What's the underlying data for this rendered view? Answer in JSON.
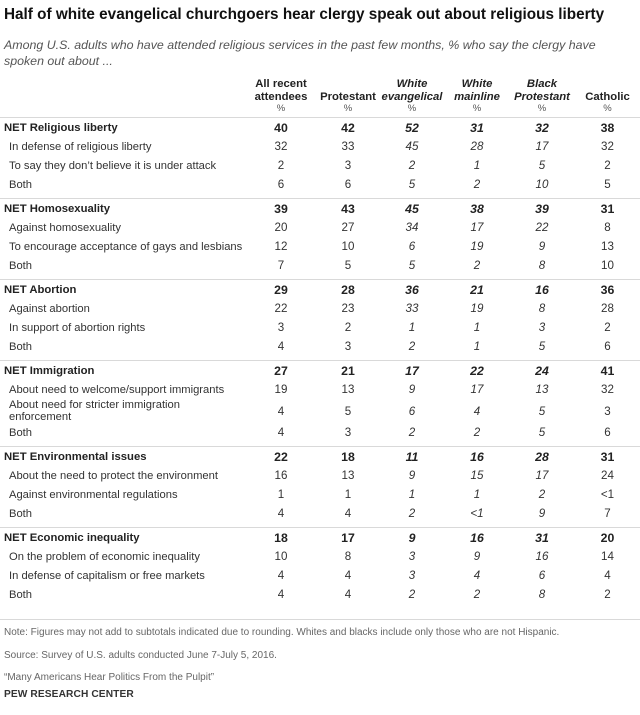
{
  "title": "Half of white evangelical churchgoers hear clergy speak out about religious liberty",
  "subtitle": "Among U.S. adults who have attended religious services in the past few months, % who say the clergy have spoken out about ...",
  "columns": [
    {
      "line1": "All recent",
      "line2": "attendees",
      "italic": false
    },
    {
      "line1": "",
      "line2": "Protestant",
      "italic": false
    },
    {
      "line1": "White",
      "line2": "evangelical",
      "italic": true
    },
    {
      "line1": "White",
      "line2": "mainline",
      "italic": true
    },
    {
      "line1": "Black",
      "line2": "Protestant",
      "italic": true
    },
    {
      "line1": "",
      "line2": "Catholic",
      "italic": false
    }
  ],
  "pct": "%",
  "groups": [
    {
      "net_label": "NET Religious liberty",
      "net_values": [
        "40",
        "42",
        "52",
        "31",
        "32",
        "38"
      ],
      "rows": [
        {
          "label": "In defense of religious liberty",
          "values": [
            "32",
            "33",
            "45",
            "28",
            "17",
            "32"
          ]
        },
        {
          "label": "To say they don’t believe it is under attack",
          "values": [
            "2",
            "3",
            "2",
            "1",
            "5",
            "2"
          ]
        },
        {
          "label": "Both",
          "values": [
            "6",
            "6",
            "5",
            "2",
            "10",
            "5"
          ]
        }
      ]
    },
    {
      "net_label": "NET Homosexuality",
      "net_values": [
        "39",
        "43",
        "45",
        "38",
        "39",
        "31"
      ],
      "rows": [
        {
          "label": "Against homosexuality",
          "values": [
            "20",
            "27",
            "34",
            "17",
            "22",
            "8"
          ]
        },
        {
          "label": "To encourage acceptance of gays and lesbians",
          "values": [
            "12",
            "10",
            "6",
            "19",
            "9",
            "13"
          ]
        },
        {
          "label": "Both",
          "values": [
            "7",
            "5",
            "5",
            "2",
            "8",
            "10"
          ]
        }
      ]
    },
    {
      "net_label": "NET Abortion",
      "net_values": [
        "29",
        "28",
        "36",
        "21",
        "16",
        "36"
      ],
      "rows": [
        {
          "label": "Against abortion",
          "values": [
            "22",
            "23",
            "33",
            "19",
            "8",
            "28"
          ]
        },
        {
          "label": "In support of abortion rights",
          "values": [
            "3",
            "2",
            "1",
            "1",
            "3",
            "2"
          ]
        },
        {
          "label": "Both",
          "values": [
            "4",
            "3",
            "2",
            "1",
            "5",
            "6"
          ]
        }
      ]
    },
    {
      "net_label": "NET Immigration",
      "net_values": [
        "27",
        "21",
        "17",
        "22",
        "24",
        "41"
      ],
      "rows": [
        {
          "label": "About need to welcome/support immigrants",
          "values": [
            "19",
            "13",
            "9",
            "17",
            "13",
            "32"
          ]
        },
        {
          "label": "About need for stricter immigration enforcement",
          "values": [
            "4",
            "5",
            "6",
            "4",
            "5",
            "3"
          ]
        },
        {
          "label": "Both",
          "values": [
            "4",
            "3",
            "2",
            "2",
            "5",
            "6"
          ]
        }
      ]
    },
    {
      "net_label": "NET Environmental issues",
      "net_values": [
        "22",
        "18",
        "11",
        "16",
        "28",
        "31"
      ],
      "rows": [
        {
          "label": "About the need to protect the environment",
          "values": [
            "16",
            "13",
            "9",
            "15",
            "17",
            "24"
          ]
        },
        {
          "label": "Against environmental regulations",
          "values": [
            "1",
            "1",
            "1",
            "1",
            "2",
            "<1"
          ]
        },
        {
          "label": "Both",
          "values": [
            "4",
            "4",
            "2",
            "<1",
            "9",
            "7"
          ]
        }
      ]
    },
    {
      "net_label": "NET Economic inequality",
      "net_values": [
        "18",
        "17",
        "9",
        "16",
        "31",
        "20"
      ],
      "rows": [
        {
          "label": "On the problem of economic inequality",
          "values": [
            "10",
            "8",
            "3",
            "9",
            "16",
            "14"
          ]
        },
        {
          "label": "In defense of capitalism or free markets",
          "values": [
            "4",
            "4",
            "3",
            "4",
            "6",
            "4"
          ]
        },
        {
          "label": "Both",
          "values": [
            "4",
            "4",
            "2",
            "2",
            "8",
            "2"
          ]
        }
      ]
    }
  ],
  "note": "Note: Figures may not add to subtotals indicated due to rounding. Whites and blacks include only those who are not Hispanic.",
  "source": "Source: Survey of U.S. adults conducted June 7-July 5, 2016.",
  "report": "“Many Americans Hear Politics From the Pulpit”",
  "brand": "PEW RESEARCH CENTER"
}
